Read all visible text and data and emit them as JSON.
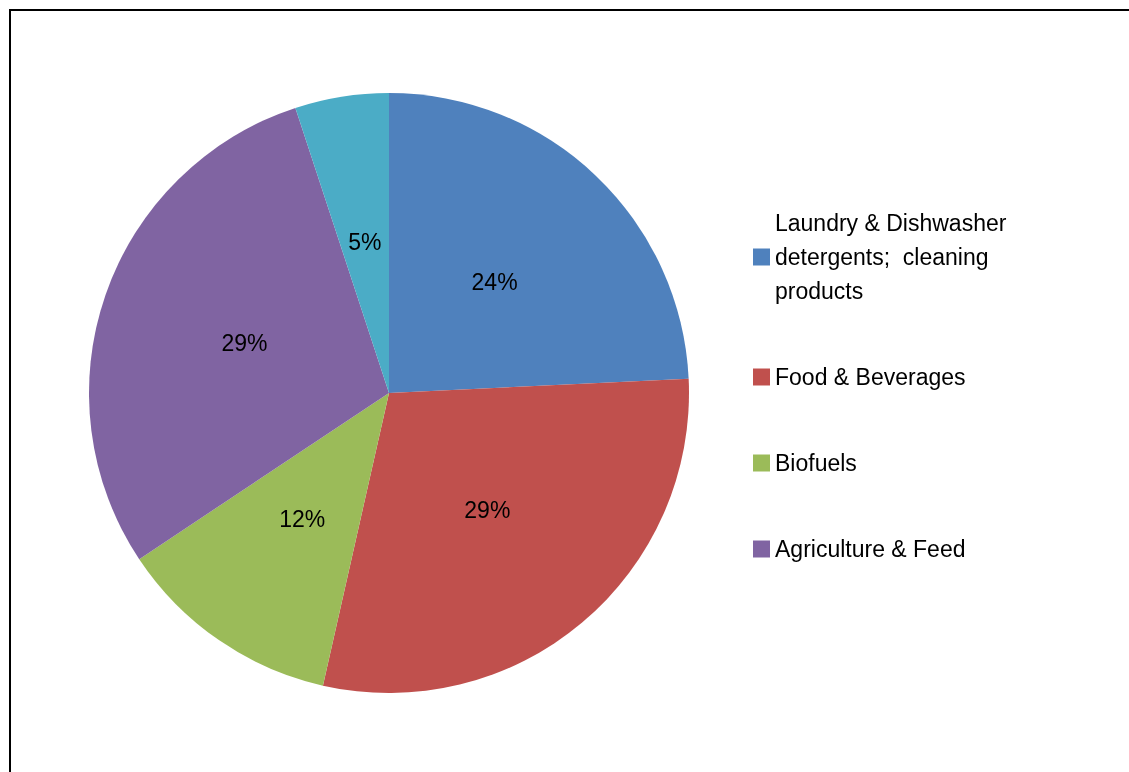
{
  "chart_data": {
    "type": "pie",
    "categories": [
      "Laundry & Dishwasher detergents;  cleaning products",
      "Food & Beverages",
      "Biofuels",
      "Agriculture & Feed",
      null
    ],
    "values": [
      24,
      29,
      12,
      29,
      5
    ],
    "value_labels": [
      "24%",
      "29%",
      "12%",
      "29%",
      "5%"
    ],
    "colors": [
      "#4f81bd",
      "#c0504d",
      "#9bbb59",
      "#8064a2",
      "#4bacc6"
    ],
    "legend": "right"
  }
}
